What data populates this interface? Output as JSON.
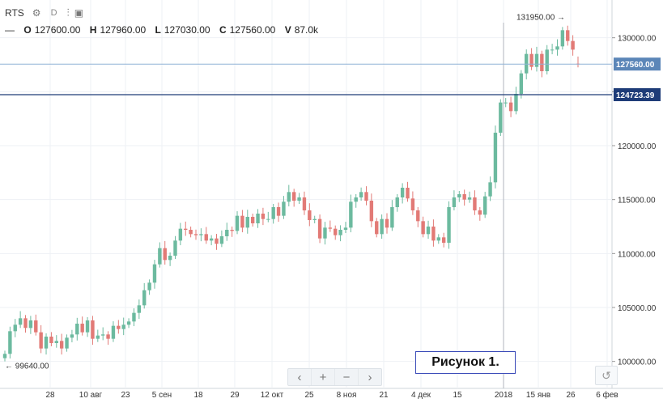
{
  "toolbar": {
    "symbol": "RTS",
    "interval": "D"
  },
  "legend": {
    "o_label": "O",
    "o": "127600.00",
    "h_label": "H",
    "h": "127960.00",
    "l_label": "L",
    "l": "127030.00",
    "c_label": "C",
    "c": "127560.00",
    "v_label": "V",
    "v": "87.0k"
  },
  "caption": "Рисунок 1.",
  "colors": {
    "up": "#6cba9f",
    "down": "#e27a76",
    "grid": "#eef1f4",
    "hline": "#1e3c78",
    "price_badge": "#5b86b8",
    "level_badge": "#1e3c78"
  },
  "chart_data": {
    "type": "candlestick",
    "x_ticks": [
      "28",
      "10 авг",
      "23",
      "5 сен",
      "18",
      "29",
      "12 окт",
      "25",
      "8 ноя",
      "21",
      "4 дек",
      "15",
      "2018",
      "15 янв",
      "26",
      "6 фев"
    ],
    "y_ticks": [
      100000,
      105000,
      110000,
      115000,
      120000,
      125000,
      130000
    ],
    "y_tick_labels": [
      "100000.00",
      "105000.00",
      "110000.00",
      "115000.00",
      "120000.00",
      "125000.00",
      "130000.00"
    ],
    "ylim": [
      97500,
      133500
    ],
    "last_price": {
      "value": 127560,
      "label": "127560.00"
    },
    "level_line": {
      "value": 124723.39,
      "label": "124723.39"
    },
    "high_marker": {
      "value": 131950,
      "label": "131950.00"
    },
    "low_marker": {
      "value": 99640,
      "label": "99640.00"
    },
    "closes": [
      100700,
      102800,
      103400,
      104000,
      103100,
      103800,
      102700,
      101200,
      102300,
      101700,
      101900,
      101200,
      102200,
      102500,
      103500,
      102700,
      103800,
      102100,
      102400,
      102500,
      102100,
      103300,
      103000,
      103400,
      103700,
      104500,
      105200,
      106600,
      107300,
      109000,
      110500,
      109400,
      109800,
      111200,
      112300,
      112200,
      111800,
      111700,
      111800,
      111200,
      111400,
      110900,
      111600,
      112200,
      112100,
      113500,
      112400,
      113400,
      112800,
      113700,
      113200,
      113200,
      114300,
      113500,
      114800,
      115700,
      114900,
      115200,
      114000,
      113100,
      113200,
      111400,
      112400,
      112300,
      111700,
      112200,
      112400,
      114800,
      115200,
      115700,
      114900,
      113000,
      111800,
      113200,
      112400,
      114300,
      115200,
      116100,
      115100,
      114000,
      113000,
      111800,
      112500,
      111200,
      111500,
      111000,
      114300,
      115200,
      115500,
      115000,
      115200,
      114000,
      113600,
      115300,
      116600,
      121200,
      124000,
      124000,
      123200,
      124800,
      126700,
      128500,
      127300,
      128500,
      126900,
      128900,
      128900,
      129200,
      130700,
      129700,
      128900,
      127560
    ],
    "date_range": [
      "2017-07-20",
      "2018-01-31"
    ]
  }
}
